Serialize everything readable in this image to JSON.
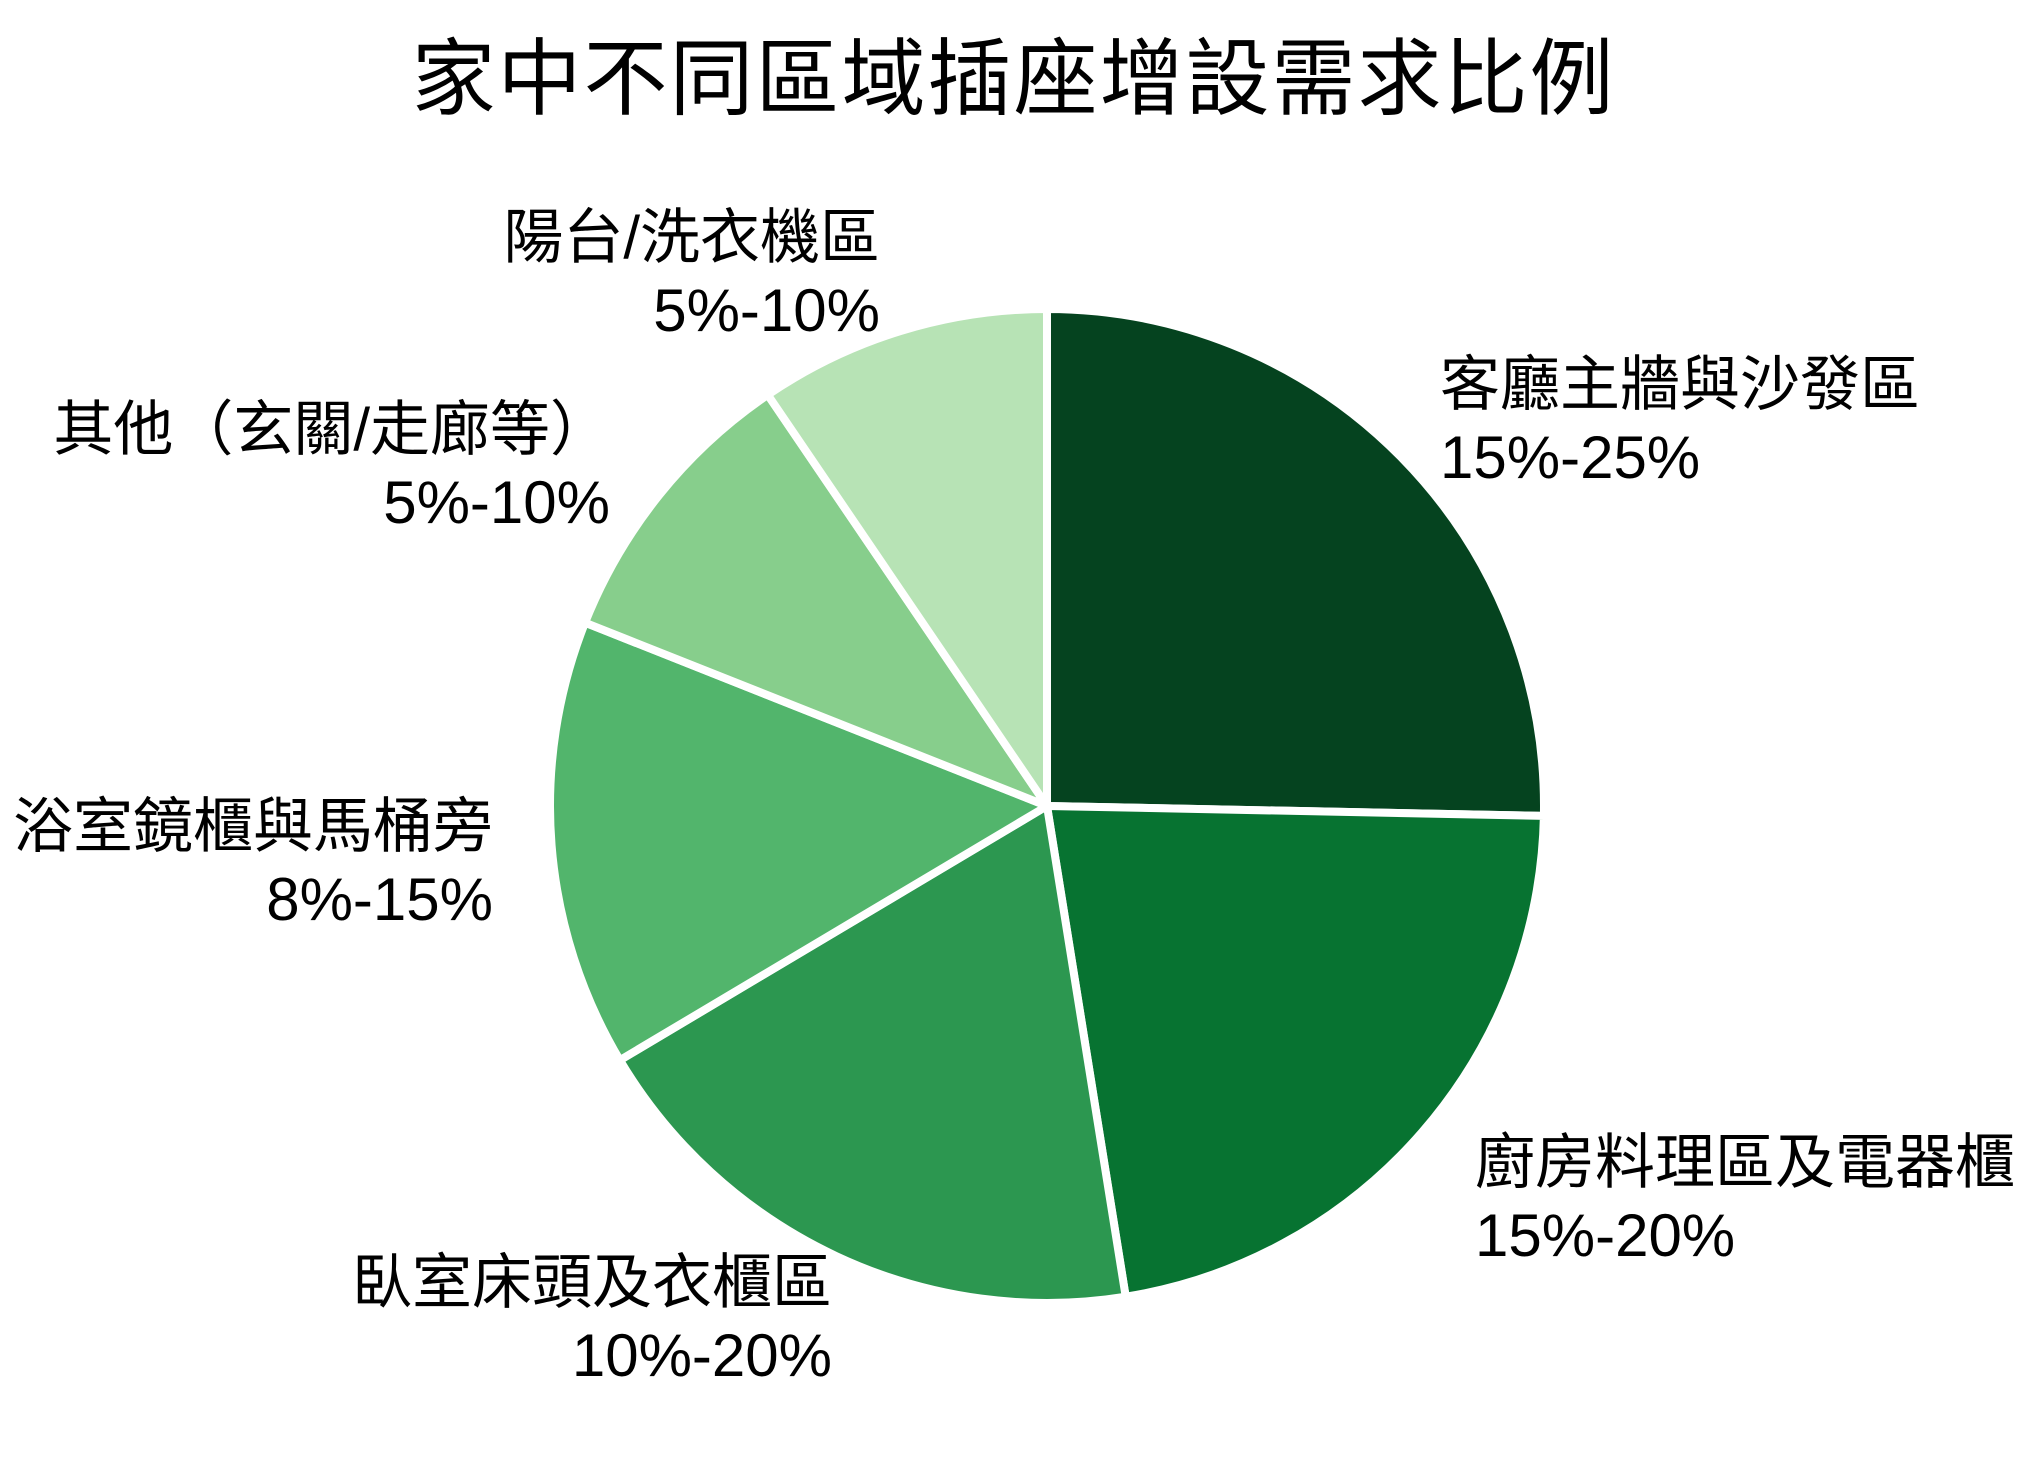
{
  "chart_data": {
    "type": "pie",
    "title": "家中不同區域插座增設需求比例",
    "legend": "none",
    "label_position": "outside",
    "start_angle_deg": 0,
    "direction": "clockwise",
    "slice_border_color": "#ffffff",
    "slices": [
      {
        "id": "living-room",
        "label": "客廳主牆與沙發區",
        "range_text": "15%-25%",
        "value": 20,
        "color": "#05431f"
      },
      {
        "id": "kitchen",
        "label": "廚房料理區及電器櫃",
        "range_text": "15%-20%",
        "value": 17.5,
        "color": "#077331"
      },
      {
        "id": "bedroom",
        "label": "臥室床頭及衣櫃區",
        "range_text": "10%-20%",
        "value": 15,
        "color": "#2c9750"
      },
      {
        "id": "bathroom",
        "label": "浴室鏡櫃與馬桶旁",
        "range_text": "8%-15%",
        "value": 11.5,
        "color": "#52b56c"
      },
      {
        "id": "other",
        "label": "其他（玄關/走廊等）",
        "range_text": "5%-10%",
        "value": 7.5,
        "color": "#87ce8c"
      },
      {
        "id": "balcony",
        "label": "陽台/洗衣機區",
        "range_text": "5%-10%",
        "value": 7.5,
        "color": "#b7e3b5"
      }
    ]
  }
}
